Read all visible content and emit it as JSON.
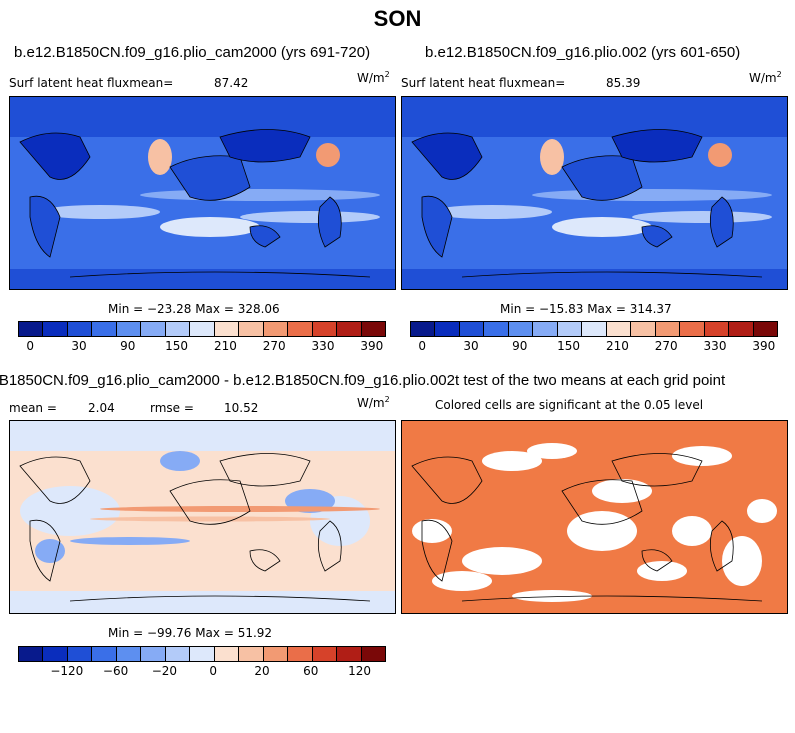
{
  "page": {
    "title": "SON"
  },
  "panels": [
    {
      "id": "p1",
      "title": "b.e12.B1850CN.f09_g16.plio_cam2000 (yrs 691-720)",
      "left_label": "Surf latent heat fluxmean=",
      "left_value": "87.42",
      "unit_base": "W/m",
      "unit_exp": "2",
      "minmax": "Min = −23.28 Max = 328.06",
      "colorbar": {
        "colors": [
          "#081a8c",
          "#0a2dbd",
          "#1f4fd6",
          "#3a6fe8",
          "#5d8ff0",
          "#86abf5",
          "#b3cbf9",
          "#dde8fb",
          "#fbe0cf",
          "#f7c1a4",
          "#f29a73",
          "#ea6e49",
          "#d6422a",
          "#b01e16",
          "#7a0808"
        ],
        "labels": [
          "0",
          "30",
          "90",
          "150",
          "210",
          "270",
          "330",
          "390"
        ]
      }
    },
    {
      "id": "p2",
      "title": "b.e12.B1850CN.f09_g16.plio.002 (yrs 601-650)",
      "left_label": "Surf latent heat fluxmean=",
      "left_value": "85.39",
      "unit_base": "W/m",
      "unit_exp": "2",
      "minmax": "Min = −15.83 Max = 314.37",
      "colorbar": {
        "colors": [
          "#081a8c",
          "#0a2dbd",
          "#1f4fd6",
          "#3a6fe8",
          "#5d8ff0",
          "#86abf5",
          "#b3cbf9",
          "#dde8fb",
          "#fbe0cf",
          "#f7c1a4",
          "#f29a73",
          "#ea6e49",
          "#d6422a",
          "#b01e16",
          "#7a0808"
        ],
        "labels": [
          "0",
          "30",
          "90",
          "150",
          "210",
          "270",
          "330",
          "390"
        ]
      }
    },
    {
      "id": "p3",
      "title": "B1850CN.f09_g16.plio_cam2000 - b.e12.B1850CN.f09_g16.plio.002",
      "mean_label": "mean =",
      "mean_value": "2.04",
      "rmse_label": "rmse =",
      "rmse_value": "10.52",
      "unit_base": "W/m",
      "unit_exp": "2",
      "minmax": "Min = −99.76 Max = 51.92",
      "colorbar": {
        "colors": [
          "#081a8c",
          "#0a2dbd",
          "#1f4fd6",
          "#3a6fe8",
          "#5d8ff0",
          "#86abf5",
          "#b3cbf9",
          "#dde8fb",
          "#fbe0cf",
          "#f7c1a4",
          "#f29a73",
          "#ea6e49",
          "#d6422a",
          "#b01e16",
          "#7a0808"
        ],
        "labels": [
          "−120",
          "−60",
          "−20",
          "0",
          "20",
          "60",
          "120"
        ]
      }
    },
    {
      "id": "p4",
      "title": "t test of the two means at each grid point",
      "subtitle": "Colored cells are significant at the 0.05 level",
      "sig_color": "#f07a45"
    }
  ]
}
